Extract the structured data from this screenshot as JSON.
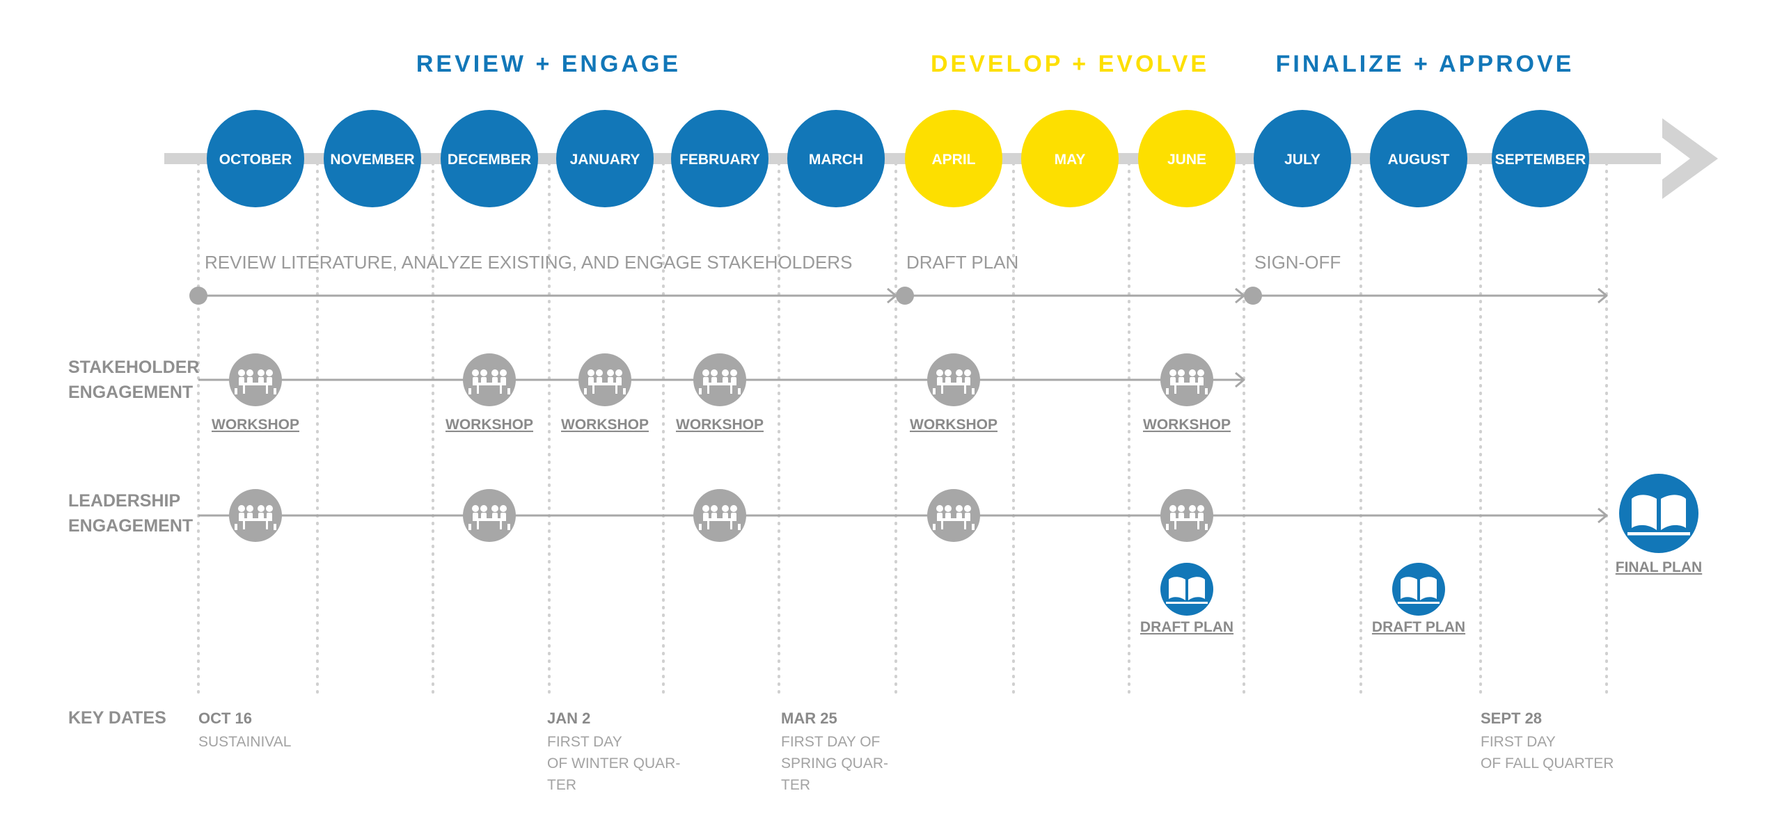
{
  "colors": {
    "blue": "#1277b8",
    "yellow": "#fddf00",
    "gray": "#a7a7a7",
    "light_gray": "#d3d3d3",
    "white": "#ffffff"
  },
  "phases": [
    {
      "label": "REVIEW + ENGAGE",
      "color": "blue"
    },
    {
      "label": "DEVELOP + EVOLVE",
      "color": "yellow"
    },
    {
      "label": "FINALIZE + APPROVE",
      "color": "blue"
    }
  ],
  "months": [
    {
      "label": "OCTOBER",
      "color": "blue"
    },
    {
      "label": "NOVEMBER",
      "color": "blue"
    },
    {
      "label": "DECEMBER",
      "color": "blue"
    },
    {
      "label": "JANUARY",
      "color": "blue"
    },
    {
      "label": "FEBRUARY",
      "color": "blue"
    },
    {
      "label": "MARCH",
      "color": "blue"
    },
    {
      "label": "APRIL",
      "color": "yellow"
    },
    {
      "label": "MAY",
      "color": "yellow"
    },
    {
      "label": "JUNE",
      "color": "yellow"
    },
    {
      "label": "JULY",
      "color": "blue"
    },
    {
      "label": "AUGUST",
      "color": "blue"
    },
    {
      "label": "SEPTEMBER",
      "color": "blue"
    }
  ],
  "tracks": [
    {
      "label": "REVIEW LITERATURE, ANALYZE EXISTING, AND ENGAGE STAKEHOLDERS"
    },
    {
      "label": "DRAFT PLAN"
    },
    {
      "label": "SIGN-OFF"
    }
  ],
  "rows": {
    "stakeholder": {
      "label_lines": [
        "STAKEHOLDER",
        "ENGAGEMENT"
      ],
      "events": [
        {
          "month_index": 0,
          "icon": "meeting-table-icon",
          "label": "WORKSHOP"
        },
        {
          "month_index": 2,
          "icon": "meeting-table-icon",
          "label": "WORKSHOP"
        },
        {
          "month_index": 3,
          "icon": "meeting-table-icon",
          "label": "WORKSHOP"
        },
        {
          "month_index": 4,
          "icon": "meeting-table-icon",
          "label": "WORKSHOP"
        },
        {
          "month_index": 6,
          "icon": "meeting-table-icon",
          "label": "WORKSHOP"
        },
        {
          "month_index": 8,
          "icon": "meeting-table-icon",
          "label": "WORKSHOP"
        }
      ]
    },
    "leadership": {
      "label_lines": [
        "LEADERSHIP",
        "ENGAGEMENT"
      ],
      "events": [
        {
          "month_index": 0,
          "icon": "meeting-table-icon"
        },
        {
          "month_index": 2,
          "icon": "meeting-table-icon"
        },
        {
          "month_index": 4,
          "icon": "meeting-table-icon"
        },
        {
          "month_index": 6,
          "icon": "meeting-table-icon"
        },
        {
          "month_index": 8,
          "icon": "meeting-table-icon"
        }
      ],
      "plans": [
        {
          "month_index": 8,
          "icon": "open-book-icon",
          "label": "DRAFT PLAN"
        },
        {
          "month_index": 10,
          "icon": "open-book-icon",
          "label": "DRAFT PLAN"
        },
        {
          "icon": "open-book-icon",
          "label": "FINAL PLAN"
        }
      ]
    }
  },
  "key_dates": {
    "label": "KEY DATES",
    "items": [
      {
        "title": "OCT 16",
        "lines": [
          "SUSTAINIVAL"
        ]
      },
      {
        "title": "JAN 2",
        "lines": [
          "FIRST DAY",
          "OF WINTER QUAR-",
          "TER"
        ]
      },
      {
        "title": "MAR 25",
        "lines": [
          "FIRST DAY OF",
          "SPRING QUAR-",
          "TER"
        ]
      },
      {
        "title": "SEPT 28",
        "lines": [
          "FIRST DAY",
          "OF FALL QUARTER"
        ]
      }
    ]
  }
}
